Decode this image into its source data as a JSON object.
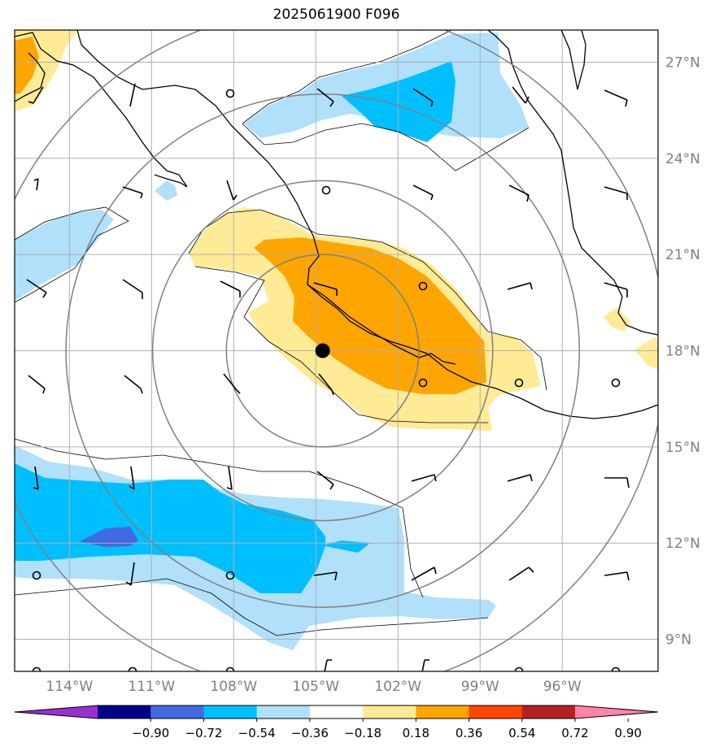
{
  "title": "2025061900 F096",
  "map": {
    "lon_range": [
      -116,
      -92.5
    ],
    "lat_range": [
      8,
      28
    ],
    "lon_ticks": [
      {
        "value": -114,
        "label": "114°W"
      },
      {
        "value": -111,
        "label": "111°W"
      },
      {
        "value": -108,
        "label": "108°W"
      },
      {
        "value": -105,
        "label": "105°W"
      },
      {
        "value": -102,
        "label": "102°W"
      },
      {
        "value": -99,
        "label": "99°W"
      },
      {
        "value": -96,
        "label": "96°W"
      }
    ],
    "lat_ticks": [
      {
        "value": 9,
        "label": "9°N"
      },
      {
        "value": 12,
        "label": "12°N"
      },
      {
        "value": 15,
        "label": "15°N"
      },
      {
        "value": 18,
        "label": "18°N"
      },
      {
        "value": 21,
        "label": "21°N"
      },
      {
        "value": 24,
        "label": "24°N"
      },
      {
        "value": 27,
        "label": "27°N"
      }
    ],
    "center_point": {
      "lon": -104.75,
      "lat": 18.0
    },
    "range_rings_deg": [
      3,
      5.3,
      8,
      10.7
    ],
    "grid": true
  },
  "colorbar": {
    "levels": [
      "−0.90",
      "−0.72",
      "−0.54",
      "−0.36",
      "−0.18",
      "0.18",
      "0.36",
      "0.54",
      "0.72",
      "0.90"
    ],
    "colors": [
      "#9932cc",
      "#00008b",
      "#4169e1",
      "#00bfff",
      "#b0e0fa",
      "#ffffff",
      "#ffeb96",
      "#ffa500",
      "#ff4500",
      "#b22222",
      "#ff85a8"
    ],
    "extend": "both"
  },
  "colors": {
    "grid": "#b0b0b0",
    "rings": "#808080",
    "coast": "#000000"
  }
}
